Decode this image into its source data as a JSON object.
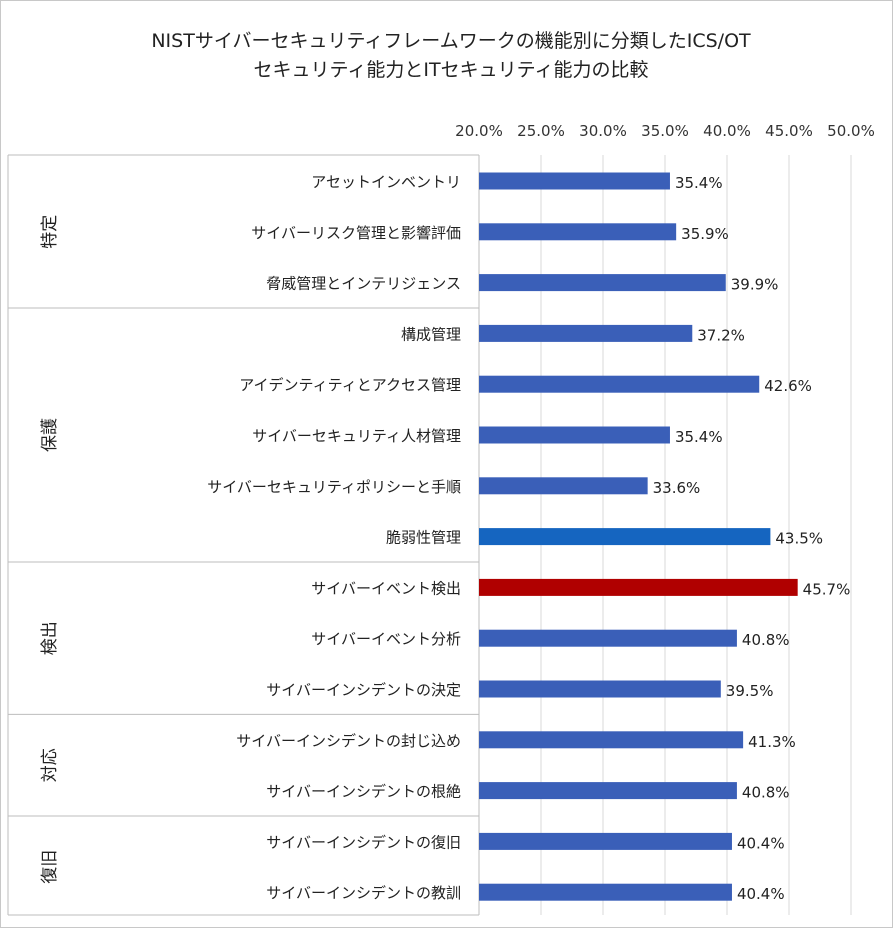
{
  "chart_data": {
    "type": "bar",
    "orientation": "horizontal",
    "title": [
      "NISTサイバーセキュリティフレームワークの機能別に分類したICS/OT",
      "セキュリティ能力とITセキュリティ能力の比較"
    ],
    "xlim": [
      20.0,
      50.0
    ],
    "x_ticks": [
      "20.0%",
      "25.0%",
      "30.0%",
      "35.0%",
      "40.0%",
      "45.0%",
      "50.0%"
    ],
    "x_axis_position": "top",
    "grid": true,
    "colors": {
      "default": "#3a5fb8",
      "highlight_blue": "#1565c0",
      "highlight_red": "#b00000"
    },
    "groups": [
      {
        "name": "特定",
        "categories": [
          {
            "label": "アセットインベントリ",
            "value": 35.4,
            "value_label": "35.4%",
            "color": "default"
          },
          {
            "label": "サイバーリスク管理と影響評価",
            "value": 35.9,
            "value_label": "35.9%",
            "color": "default"
          },
          {
            "label": "脅威管理とインテリジェンス",
            "value": 39.9,
            "value_label": "39.9%",
            "color": "default"
          }
        ]
      },
      {
        "name": "保護",
        "categories": [
          {
            "label": "構成管理",
            "value": 37.2,
            "value_label": "37.2%",
            "color": "default"
          },
          {
            "label": "アイデンティティとアクセス管理",
            "value": 42.6,
            "value_label": "42.6%",
            "color": "default"
          },
          {
            "label": "サイバーセキュリティ人材管理",
            "value": 35.4,
            "value_label": "35.4%",
            "color": "default"
          },
          {
            "label": "サイバーセキュリティポリシーと手順",
            "value": 33.6,
            "value_label": "33.6%",
            "color": "default"
          },
          {
            "label": "脆弱性管理",
            "value": 43.5,
            "value_label": "43.5%",
            "color": "highlight_blue"
          }
        ]
      },
      {
        "name": "検出",
        "categories": [
          {
            "label": "サイバーイベント検出",
            "value": 45.7,
            "value_label": "45.7%",
            "color": "highlight_red"
          },
          {
            "label": "サイバーイベント分析",
            "value": 40.8,
            "value_label": "40.8%",
            "color": "default"
          },
          {
            "label": "サイバーインシデントの決定",
            "value": 39.5,
            "value_label": "39.5%",
            "color": "default"
          }
        ]
      },
      {
        "name": "対応",
        "categories": [
          {
            "label": "サイバーインシデントの封じ込め",
            "value": 41.3,
            "value_label": "41.3%",
            "color": "default"
          },
          {
            "label": "サイバーインシデントの根絶",
            "value": 40.8,
            "value_label": "40.8%",
            "color": "default"
          }
        ]
      },
      {
        "name": "復旧",
        "categories": [
          {
            "label": "サイバーインシデントの復旧",
            "value": 40.4,
            "value_label": "40.4%",
            "color": "default"
          },
          {
            "label": "サイバーインシデントの教訓",
            "value": 40.4,
            "value_label": "40.4%",
            "color": "default"
          }
        ]
      }
    ]
  }
}
